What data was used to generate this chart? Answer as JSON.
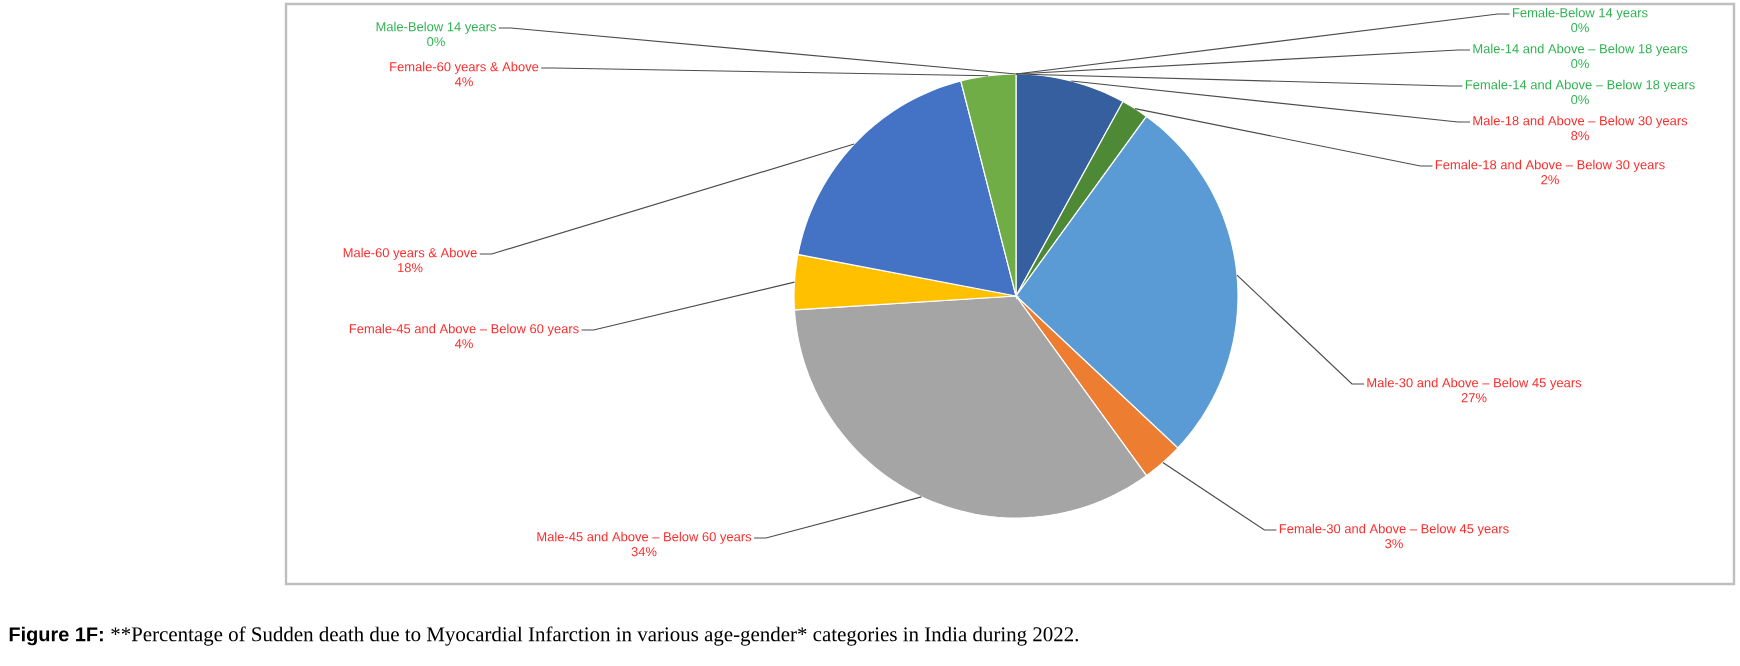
{
  "chart_data": {
    "type": "pie",
    "categories": [
      "Male-Below 14 years",
      "Female-Below 14 years",
      "Male-14 and Above – Below 18 years",
      "Female-14 and Above – Below 18 years",
      "Male-18 and Above – Below 30 years",
      "Female-18 and Above – Below 30 years",
      "Male-30 and Above – Below 45 years",
      "Female-30 and Above – Below 45 years",
      "Male-45 and Above – Below 60 years",
      "Female-45 and Above – Below 60 years",
      "Male-60 years & Above",
      "Female-60 years & Above"
    ],
    "values": [
      0,
      0,
      0,
      0,
      8,
      2,
      27,
      3,
      34,
      4,
      18,
      4
    ],
    "colors": [
      "#a5a5a5",
      "#ed7d31",
      "#997300",
      "#9e480e",
      "#355f9f",
      "#4e8a35",
      "#5b9bd5",
      "#ed7d31",
      "#a5a5a5",
      "#ffc000",
      "#4472c4",
      "#70ad47"
    ],
    "value_labels": [
      "0%",
      "0%",
      "0%",
      "0%",
      "8%",
      "2%",
      "27%",
      "3%",
      "34%",
      "4%",
      "18%",
      "4%"
    ],
    "annotations": [
      "Figure 1F:",
      "**Percentage of Sudden death due to Myocardial Infarction in various age-gender* categories in India during 2022."
    ]
  }
}
